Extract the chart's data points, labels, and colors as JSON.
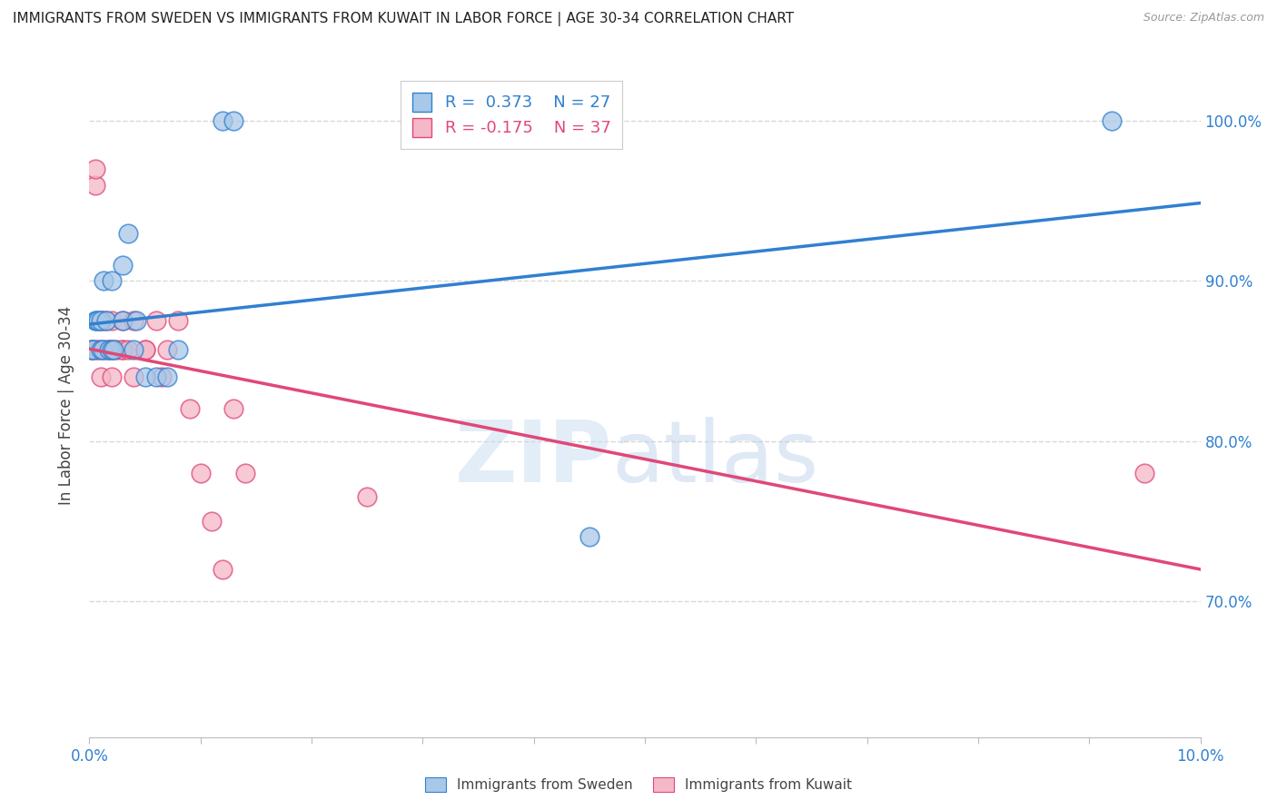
{
  "title": "IMMIGRANTS FROM SWEDEN VS IMMIGRANTS FROM KUWAIT IN LABOR FORCE | AGE 30-34 CORRELATION CHART",
  "source": "Source: ZipAtlas.com",
  "ylabel": "In Labor Force | Age 30-34",
  "legend_sweden": "R =  0.373    N = 27",
  "legend_kuwait": "R = -0.175    N = 37",
  "legend_label_sweden": "Immigrants from Sweden",
  "legend_label_kuwait": "Immigrants from Kuwait",
  "sweden_color": "#a8c8e8",
  "kuwait_color": "#f4b8c8",
  "sweden_line_color": "#3080d0",
  "kuwait_line_color": "#e04878",
  "watermark_zip": "ZIP",
  "watermark_atlas": "atlas",
  "xlim": [
    0.0,
    0.1
  ],
  "ylim": [
    0.615,
    1.03
  ],
  "yticks": [
    0.7,
    0.8,
    0.9,
    1.0
  ],
  "xtick_vals": [
    0.0,
    0.01,
    0.02,
    0.03,
    0.04,
    0.05,
    0.06,
    0.07,
    0.08,
    0.09,
    0.1
  ],
  "sweden_x": [
    0.0002,
    0.0003,
    0.0005,
    0.0006,
    0.0008,
    0.001,
    0.001,
    0.0012,
    0.0013,
    0.0015,
    0.0018,
    0.002,
    0.002,
    0.0022,
    0.003,
    0.003,
    0.0035,
    0.004,
    0.0042,
    0.005,
    0.006,
    0.007,
    0.008,
    0.012,
    0.013,
    0.045,
    0.092
  ],
  "sweden_y": [
    0.857,
    0.857,
    0.875,
    0.875,
    0.875,
    0.857,
    0.875,
    0.857,
    0.9,
    0.875,
    0.857,
    0.857,
    0.9,
    0.857,
    0.91,
    0.875,
    0.93,
    0.857,
    0.875,
    0.84,
    0.84,
    0.84,
    0.857,
    1.0,
    1.0,
    0.74,
    1.0
  ],
  "kuwait_x": [
    0.0002,
    0.0003,
    0.0005,
    0.0005,
    0.0006,
    0.0008,
    0.001,
    0.001,
    0.0012,
    0.0013,
    0.0015,
    0.0016,
    0.0018,
    0.002,
    0.002,
    0.0022,
    0.0025,
    0.003,
    0.003,
    0.003,
    0.0035,
    0.004,
    0.004,
    0.005,
    0.005,
    0.006,
    0.0065,
    0.007,
    0.008,
    0.009,
    0.01,
    0.011,
    0.012,
    0.013,
    0.014,
    0.025,
    0.095
  ],
  "kuwait_y": [
    0.857,
    0.857,
    0.96,
    0.97,
    0.857,
    0.857,
    0.875,
    0.84,
    0.875,
    0.857,
    0.875,
    0.857,
    0.857,
    0.875,
    0.84,
    0.857,
    0.857,
    0.875,
    0.857,
    0.857,
    0.857,
    0.84,
    0.875,
    0.857,
    0.857,
    0.875,
    0.84,
    0.857,
    0.875,
    0.82,
    0.78,
    0.75,
    0.72,
    0.82,
    0.78,
    0.765,
    0.78
  ],
  "grid_color": "#d8d8d8",
  "background_color": "#ffffff",
  "tick_color": "#3080d0",
  "label_color": "#444444"
}
